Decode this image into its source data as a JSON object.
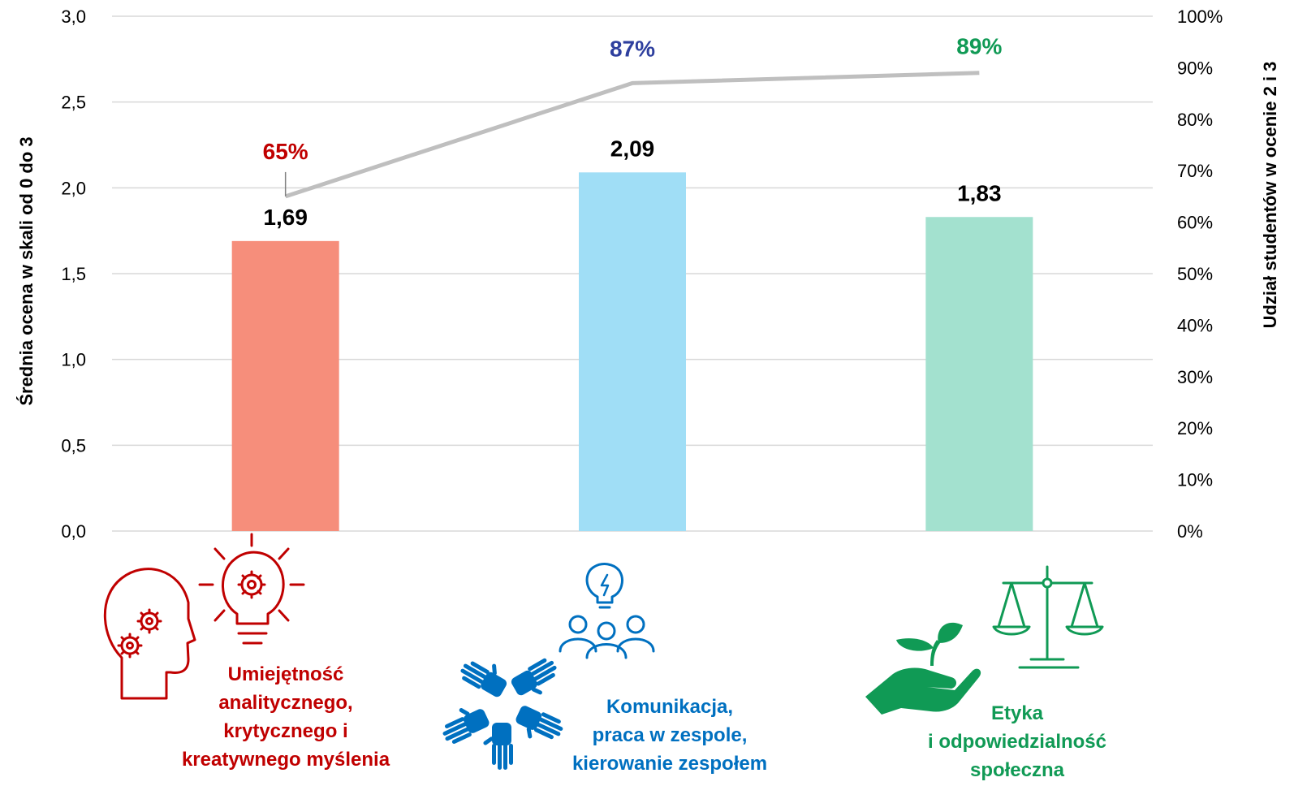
{
  "chart_data": {
    "type": "bar",
    "categories": [
      "Umiejętność analitycznego, krytycznego i kreatywnego myślenia",
      "Komunikacja, praca w zespole, kierowanie zespołem",
      "Etyka i odpowiedzialność społeczna"
    ],
    "category_label_lines": [
      [
        "Umiejętność",
        "analitycznego,",
        "krytycznego i",
        "kreatywnego myślenia"
      ],
      [
        "Komunikacja,",
        "praca w zespole,",
        "kierowanie zespołem"
      ],
      [
        "Etyka",
        "i odpowiedzialność",
        "społeczna"
      ]
    ],
    "category_icons": [
      "head-gears-lightbulb-icon",
      "team-hands-people-icon",
      "scales-plant-hand-icon"
    ],
    "series": [
      {
        "type": "bar",
        "axis": "left",
        "values": [
          1.69,
          2.09,
          1.83
        ],
        "value_labels": [
          "1,69",
          "2,09",
          "1,83"
        ],
        "colors": [
          "#F68E7B",
          "#A0DEF6",
          "#A3E1CF"
        ]
      },
      {
        "type": "line",
        "axis": "right",
        "values": [
          65,
          87,
          89
        ],
        "value_labels": [
          "65%",
          "87%",
          "89%"
        ],
        "label_colors": [
          "#C00000",
          "#2E3F9E",
          "#109A55"
        ],
        "line_color": "#BFBFBF"
      }
    ],
    "ylabel": "Średnia ocena w skali od 0 do 3",
    "ylabel_right": "Udział studentów w ocenie 2 i 3",
    "ylim": [
      0,
      3
    ],
    "yticks": [
      "0,0",
      "0,5",
      "1,0",
      "1,5",
      "2,0",
      "2,5",
      "3,0"
    ],
    "ylim_right": [
      0,
      100
    ],
    "yticks_right": [
      "0%",
      "10%",
      "20%",
      "30%",
      "40%",
      "50%",
      "60%",
      "70%",
      "80%",
      "90%",
      "100%"
    ],
    "grid": true,
    "category_label_colors": [
      "#C00000",
      "#0070C0",
      "#109A55"
    ],
    "gridline_color": "#D9D9D9"
  }
}
